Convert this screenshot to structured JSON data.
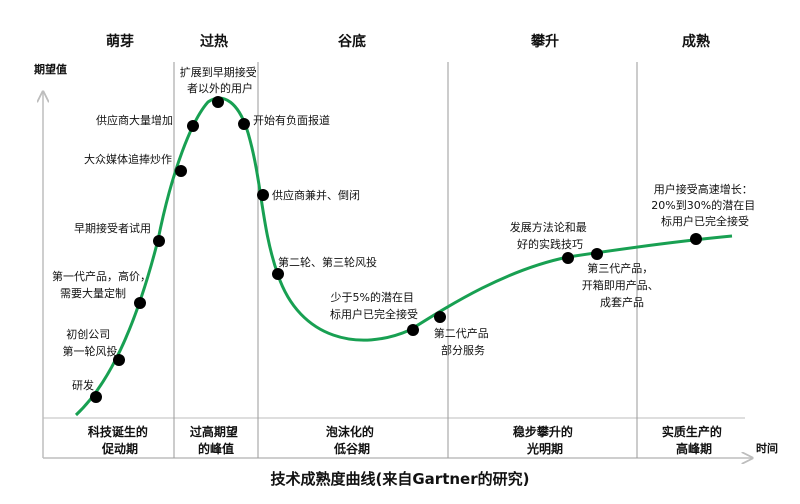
{
  "diagram": {
    "title": "技术成熟度曲线(来自Gartner的研究)",
    "y_axis_label": "期望值",
    "x_axis_label": "时间",
    "phases": [
      "萌芽",
      "过热",
      "谷底",
      "攀升",
      "成熟"
    ],
    "bottom_labels": [
      [
        "科技诞生的",
        "促动期"
      ],
      [
        "过高期望",
        "的峰值"
      ],
      [
        "泡沫化的",
        "低谷期"
      ],
      [
        "稳步攀升的",
        "光明期"
      ],
      [
        "实质生产的",
        "高峰期"
      ]
    ],
    "annotations": [
      [
        "研发"
      ],
      [
        "初创公司",
        "第一轮风投"
      ],
      [
        "第一代产品，高价，",
        "需要大量定制"
      ],
      [
        "早期接受者试用"
      ],
      [
        "大众媒体追捧炒作"
      ],
      [
        "供应商大量增加"
      ],
      [
        "扩展到早期接受",
        "者以外的用户"
      ],
      [
        "开始有负面报道"
      ],
      [
        "供应商兼并、倒闭"
      ],
      [
        "第二轮、第三轮风投"
      ],
      [
        "少于5%的潜在目",
        "标用户已完全接受"
      ],
      [
        "第二代产品",
        "部分服务"
      ],
      [
        "发展方法论和最",
        "好的实践技巧"
      ],
      [
        "第三代产品，",
        "开箱即用产品、",
        "成套产品"
      ],
      [
        "用户接受高速增长：",
        "20%到30%的潜在目",
        "标用户已完全接受"
      ]
    ],
    "colors": {
      "curve": "#18a052",
      "dot": "#000000",
      "axis": "#bdbdbd",
      "divider": "#9a9a9a"
    }
  }
}
